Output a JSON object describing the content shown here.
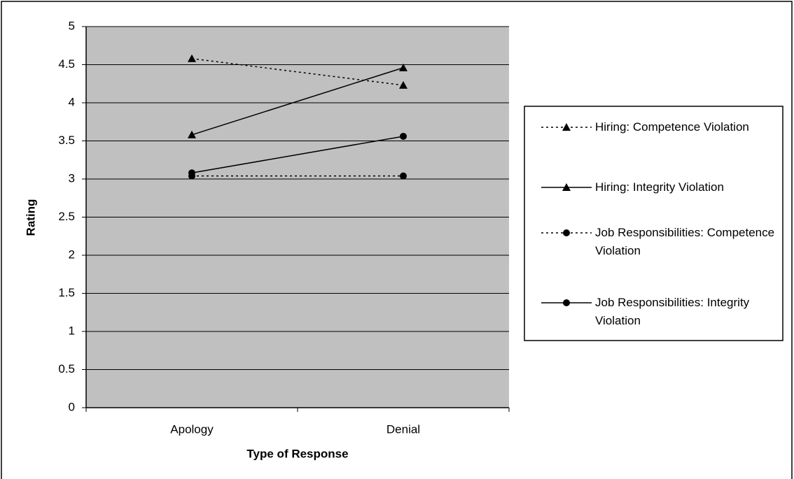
{
  "chart_data": {
    "type": "line",
    "x_label": "Type of Response",
    "y_label": "Rating",
    "categories": [
      "Apology",
      "Denial"
    ],
    "series": [
      {
        "name": "Hiring: Competence Violation",
        "color": "#000000",
        "marker": "triangle",
        "line_style": "dotted",
        "values": [
          4.58,
          4.23
        ]
      },
      {
        "name": "Hiring: Integrity Violation",
        "color": "#000000",
        "marker": "triangle",
        "line_style": "solid",
        "values": [
          3.58,
          4.46
        ]
      },
      {
        "name": "Job Responsibilities: Competence Violation",
        "color": "#000000",
        "marker": "circle",
        "line_style": "dotted",
        "values": [
          3.04,
          3.04
        ]
      },
      {
        "name": "Job Responsibilities: Integrity Violation",
        "color": "#000000",
        "marker": "circle",
        "line_style": "solid",
        "values": [
          3.08,
          3.56
        ]
      }
    ],
    "ylim": [
      0,
      5
    ],
    "yticks": [
      0,
      0.5,
      1,
      1.5,
      2,
      2.5,
      3,
      3.5,
      4,
      4.5,
      5
    ],
    "grid": true,
    "plot_background": "#c0c0c0",
    "legend": "right"
  }
}
